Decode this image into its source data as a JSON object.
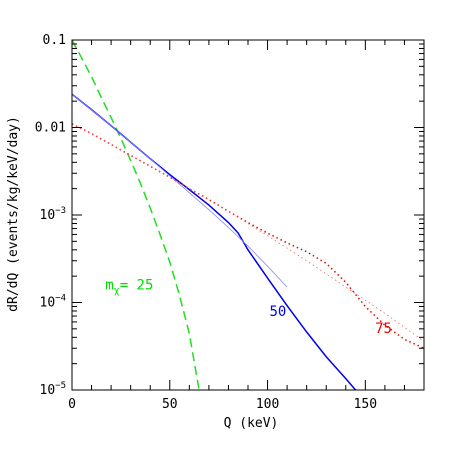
{
  "chart_data": {
    "type": "line",
    "xlabel": "Q (keV)",
    "ylabel": "dR/dQ (events/kg/keV/day)",
    "xlim": [
      0,
      180
    ],
    "ylim": [
      1e-05,
      0.1
    ],
    "yscale": "log",
    "x_ticks": [
      0,
      50,
      100,
      150
    ],
    "x_tick_labels": [
      "0",
      "50",
      "100",
      "150"
    ],
    "y_ticks": [
      1e-05,
      0.0001,
      0.001,
      0.01,
      0.1
    ],
    "y_tick_labels": [
      {
        "base": "10",
        "exp": "−5",
        "plain": ""
      },
      {
        "base": "10",
        "exp": "−4",
        "plain": ""
      },
      {
        "base": "10",
        "exp": "−3",
        "plain": ""
      },
      {
        "base": "",
        "exp": "",
        "plain": "0.01"
      },
      {
        "base": "",
        "exp": "",
        "plain": "0.1"
      }
    ],
    "grid": false,
    "legend": "none",
    "annotations": [
      {
        "text_prefix": "m",
        "text_sub": "χ",
        "text_suffix": "= 25",
        "color": "#00dd00",
        "x": 17,
        "y": 0.00014
      },
      {
        "text_prefix": "50",
        "text_sub": "",
        "text_suffix": "",
        "color": "#0000ee",
        "x": 101,
        "y": 7e-05
      },
      {
        "text_prefix": "75",
        "text_sub": "",
        "text_suffix": "",
        "color": "#ee0000",
        "x": 155,
        "y": 4.5e-05
      }
    ],
    "series": [
      {
        "mass": "25",
        "color": "#22dd22",
        "style": "dashed",
        "width": 1.5,
        "x": [
          0,
          5,
          10,
          15,
          20,
          25,
          30,
          35,
          40,
          45,
          50,
          55,
          60,
          65
        ],
        "y": [
          0.1,
          0.062,
          0.038,
          0.022,
          0.013,
          0.0075,
          0.0042,
          0.0023,
          0.0012,
          0.0006,
          0.00029,
          0.00012,
          4.4e-05,
          1e-05
        ]
      },
      {
        "mass": "50",
        "color": "#0000ee",
        "style": "solid",
        "width": 1.5,
        "x": [
          0,
          10,
          20,
          30,
          40,
          50,
          60,
          70,
          80,
          85,
          90,
          100,
          110,
          120,
          130,
          140,
          145
        ],
        "y": [
          0.024,
          0.016,
          0.0105,
          0.0068,
          0.0044,
          0.0029,
          0.00195,
          0.0013,
          0.00082,
          0.00062,
          0.0004,
          0.00019,
          9.2e-05,
          4.6e-05,
          2.4e-05,
          1.35e-05,
          1e-05
        ]
      },
      {
        "mass": "50 (thin)",
        "color": "#8888ff",
        "style": "solid",
        "width": 0.8,
        "x": [
          0,
          10,
          20,
          30,
          40,
          50,
          60,
          70,
          80,
          90,
          100,
          110
        ],
        "y": [
          0.024,
          0.016,
          0.0105,
          0.0068,
          0.0044,
          0.0028,
          0.0018,
          0.00115,
          0.00072,
          0.00044,
          0.00026,
          0.00015
        ]
      },
      {
        "mass": "75",
        "color": "#ee0000",
        "style": "dotted",
        "width": 1.5,
        "x": [
          0,
          10,
          20,
          30,
          40,
          50,
          60,
          70,
          80,
          90,
          100,
          110,
          120,
          130,
          140,
          150,
          160,
          170,
          180
        ],
        "y": [
          0.011,
          0.0085,
          0.0064,
          0.0048,
          0.0036,
          0.0027,
          0.002,
          0.0015,
          0.0011,
          0.00082,
          0.00062,
          0.00048,
          0.00038,
          0.00028,
          0.00017,
          9e-05,
          5.5e-05,
          3.8e-05,
          3e-05
        ]
      },
      {
        "mass": "75 (thin)",
        "color": "#ee6666",
        "style": "dotted",
        "width": 0.8,
        "x": [
          0,
          20,
          40,
          60,
          80,
          100,
          120,
          140,
          160,
          180
        ],
        "y": [
          0.011,
          0.0064,
          0.0036,
          0.002,
          0.0011,
          0.00058,
          0.0003,
          0.00015,
          7.5e-05,
          3.6e-05
        ]
      }
    ]
  }
}
